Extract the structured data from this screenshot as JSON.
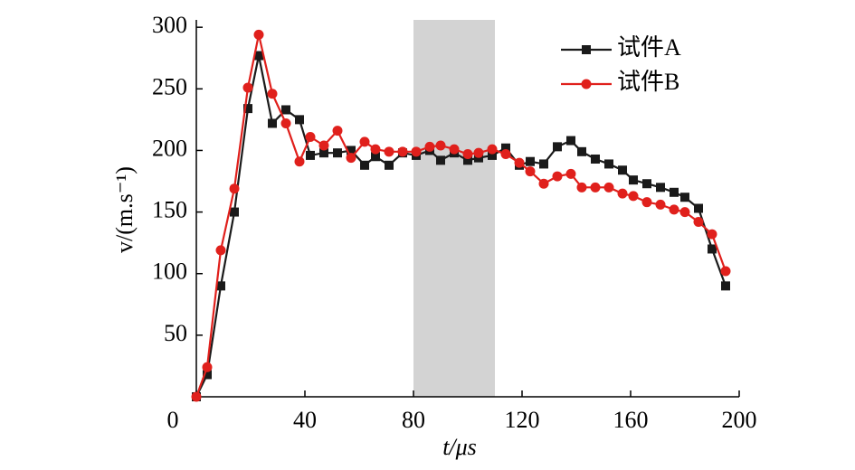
{
  "chart_data": {
    "type": "line",
    "x_label": "t/μs",
    "y_label": "v/(m.s⁻¹)",
    "x": [
      0,
      4,
      9,
      14,
      19,
      23,
      28,
      33,
      38,
      42,
      47,
      52,
      57,
      62,
      66,
      71,
      76,
      81,
      86,
      90,
      95,
      100,
      104,
      109,
      114,
      119,
      123,
      128,
      133,
      138,
      142,
      147,
      152,
      157,
      161,
      166,
      171,
      176,
      180,
      185,
      190,
      195
    ],
    "series": [
      {
        "name": "试件A",
        "color": "#1a1a1a",
        "marker": "square",
        "values": [
          0,
          18,
          90,
          150,
          234,
          277,
          222,
          233,
          225,
          196,
          198,
          198,
          200,
          188,
          195,
          188,
          198,
          196,
          200,
          192,
          198,
          192,
          194,
          196,
          202,
          188,
          191,
          189,
          203,
          208,
          199,
          193,
          189,
          184,
          176,
          173,
          170,
          166,
          162,
          153,
          120,
          90
        ]
      },
      {
        "name": "试件B",
        "color": "#e0201c",
        "marker": "circle",
        "values": [
          0,
          24,
          119,
          169,
          251,
          294,
          246,
          222,
          191,
          211,
          204,
          216,
          194,
          207,
          201,
          199,
          199,
          199,
          203,
          204,
          201,
          197,
          198,
          201,
          197,
          190,
          183,
          173,
          179,
          181,
          170,
          170,
          170,
          165,
          163,
          158,
          156,
          152,
          150,
          142,
          132,
          102
        ]
      }
    ],
    "shaded_region": {
      "x": [
        80,
        110
      ],
      "color": "#d3d3d3"
    },
    "xlim": [
      0,
      200
    ],
    "xticks": [
      0,
      40,
      80,
      120,
      160,
      200
    ],
    "ylim": [
      0,
      306
    ],
    "yticks": [
      50,
      100,
      150,
      200,
      250,
      300
    ],
    "legend": "upper right"
  }
}
